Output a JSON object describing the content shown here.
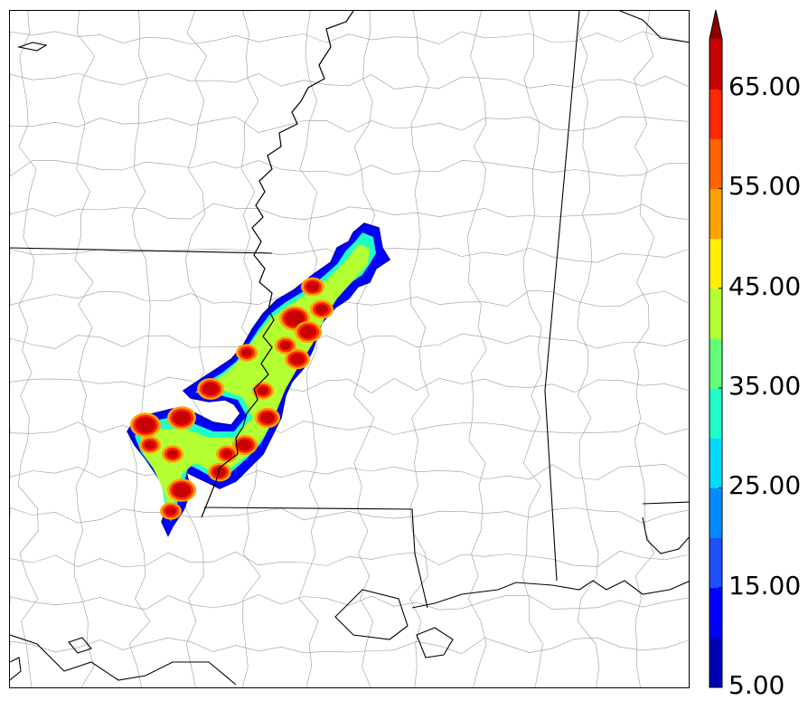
{
  "map": {
    "description_layers": [
      "county-boundaries",
      "state-boundaries",
      "coastline",
      "mississippi-river",
      "radar-reflectivity"
    ]
  },
  "colorbar": {
    "levels": [
      5,
      10,
      15,
      20,
      25,
      30,
      35,
      40,
      45,
      50,
      55,
      60,
      65,
      70
    ],
    "colors": [
      "#0000b4",
      "#0000ff",
      "#1e50ff",
      "#008cff",
      "#00dcff",
      "#1effc8",
      "#64ff78",
      "#b4ff32",
      "#fff000",
      "#ffa000",
      "#ff6400",
      "#ff2800",
      "#c80000",
      "#8b0000"
    ],
    "extend": "max",
    "tick_labels": [
      "5.00",
      "15.00",
      "25.00",
      "35.00",
      "45.00",
      "55.00",
      "65.00"
    ]
  }
}
